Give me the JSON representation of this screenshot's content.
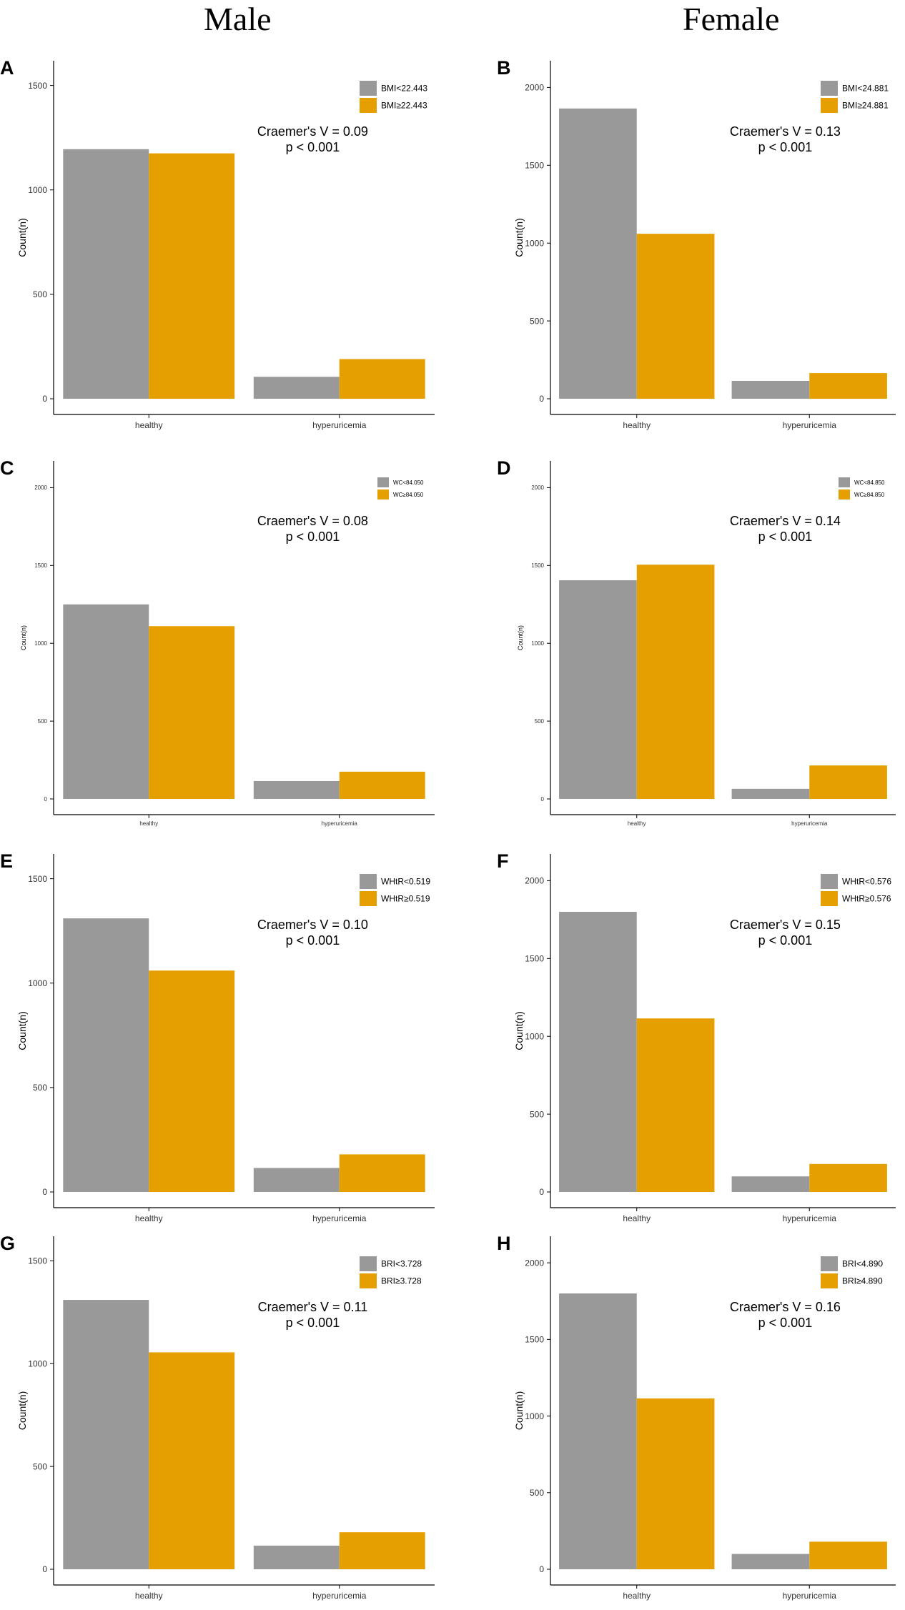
{
  "header": {
    "male": "Male",
    "female": "Female"
  },
  "colors": {
    "below": "#999999",
    "above": "#E69F00",
    "axis": "#000000",
    "text": "#333333"
  },
  "chart_data": [
    {
      "panel": "A",
      "type": "bar",
      "ylabel": "Count(n)",
      "ylim": [
        0,
        1550
      ],
      "yticks": [
        0,
        500,
        1000,
        1500
      ],
      "categories": [
        "healthy",
        "hyperuricemia"
      ],
      "series": [
        {
          "name": "BMI<22.443",
          "values": [
            1195,
            105
          ]
        },
        {
          "name": "BMI≥22.443",
          "values": [
            1175,
            190
          ]
        }
      ],
      "annotation": [
        "Craemer's V = 0.09",
        "p < 0.001"
      ],
      "legend_position": "top-right",
      "scale": "large"
    },
    {
      "panel": "B",
      "type": "bar",
      "ylabel": "Count(n)",
      "ylim": [
        0,
        2080
      ],
      "yticks": [
        0,
        500,
        1000,
        1500,
        2000
      ],
      "categories": [
        "healthy",
        "hyperuricemia"
      ],
      "series": [
        {
          "name": "BMI<24.881",
          "values": [
            1865,
            115
          ]
        },
        {
          "name": "BMI≥24.881",
          "values": [
            1060,
            165
          ]
        }
      ],
      "annotation": [
        "Craemer's V = 0.13",
        "p < 0.001"
      ],
      "legend_position": "top-right",
      "scale": "large"
    },
    {
      "panel": "C",
      "type": "bar",
      "ylabel": "Count(n)",
      "ylim": [
        0,
        2080
      ],
      "yticks": [
        0,
        500,
        1000,
        1500,
        2000
      ],
      "categories": [
        "healthy",
        "hyperuricemia"
      ],
      "series": [
        {
          "name": "WC<84.050",
          "values": [
            1250,
            115
          ]
        },
        {
          "name": "WC≥84.050",
          "values": [
            1110,
            175
          ]
        }
      ],
      "annotation": [
        "Craemer's V = 0.08",
        "p < 0.001"
      ],
      "legend_position": "top-right",
      "scale": "small"
    },
    {
      "panel": "D",
      "type": "bar",
      "ylabel": "Count(n)",
      "ylim": [
        0,
        2080
      ],
      "yticks": [
        0,
        500,
        1000,
        1500,
        2000
      ],
      "categories": [
        "healthy",
        "hyperuricemia"
      ],
      "series": [
        {
          "name": "WC<84.850",
          "values": [
            1405,
            65
          ]
        },
        {
          "name": "WC≥84.850",
          "values": [
            1505,
            215
          ]
        }
      ],
      "annotation": [
        "Craemer's V = 0.14",
        "p < 0.001"
      ],
      "legend_position": "top-right",
      "scale": "small"
    },
    {
      "panel": "E",
      "type": "bar",
      "ylabel": "Count(n)",
      "ylim": [
        0,
        1550
      ],
      "yticks": [
        0,
        500,
        1000,
        1500
      ],
      "categories": [
        "healthy",
        "hyperuricemia"
      ],
      "series": [
        {
          "name": "WHtR<0.519",
          "values": [
            1310,
            115
          ]
        },
        {
          "name": "WHtR≥0.519",
          "values": [
            1060,
            180
          ]
        }
      ],
      "annotation": [
        "Craemer's V = 0.10",
        "p < 0.001"
      ],
      "legend_position": "top-right",
      "scale": "large"
    },
    {
      "panel": "F",
      "type": "bar",
      "ylabel": "Count(n)",
      "ylim": [
        0,
        2080
      ],
      "yticks": [
        0,
        500,
        1000,
        1500,
        2000
      ],
      "categories": [
        "healthy",
        "hyperuricemia"
      ],
      "series": [
        {
          "name": "WHtR<0.576",
          "values": [
            1800,
            100
          ]
        },
        {
          "name": "WHtR≥0.576",
          "values": [
            1115,
            180
          ]
        }
      ],
      "annotation": [
        "Craemer's V = 0.15",
        "p < 0.001"
      ],
      "legend_position": "top-right",
      "scale": "large"
    },
    {
      "panel": "G",
      "type": "bar",
      "ylabel": "Count(n)",
      "ylim": [
        0,
        1550
      ],
      "yticks": [
        0,
        500,
        1000,
        1500
      ],
      "categories": [
        "healthy",
        "hyperuricemia"
      ],
      "series": [
        {
          "name": "BRI<3.728",
          "values": [
            1310,
            115
          ]
        },
        {
          "name": "BRI≥3.728",
          "values": [
            1055,
            180
          ]
        }
      ],
      "annotation": [
        "Craemer's V = 0.11",
        "p < 0.001"
      ],
      "legend_position": "top-right",
      "scale": "large"
    },
    {
      "panel": "H",
      "type": "bar",
      "ylabel": "Count(n)",
      "ylim": [
        0,
        2080
      ],
      "yticks": [
        0,
        500,
        1000,
        1500,
        2000
      ],
      "categories": [
        "healthy",
        "hyperuricemia"
      ],
      "series": [
        {
          "name": "BRI<4.890",
          "values": [
            1800,
            100
          ]
        },
        {
          "name": "BRI≥4.890",
          "values": [
            1115,
            180
          ]
        }
      ],
      "annotation": [
        "Craemer's V = 0.16",
        "p < 0.001"
      ],
      "legend_position": "top-right",
      "scale": "large"
    }
  ]
}
